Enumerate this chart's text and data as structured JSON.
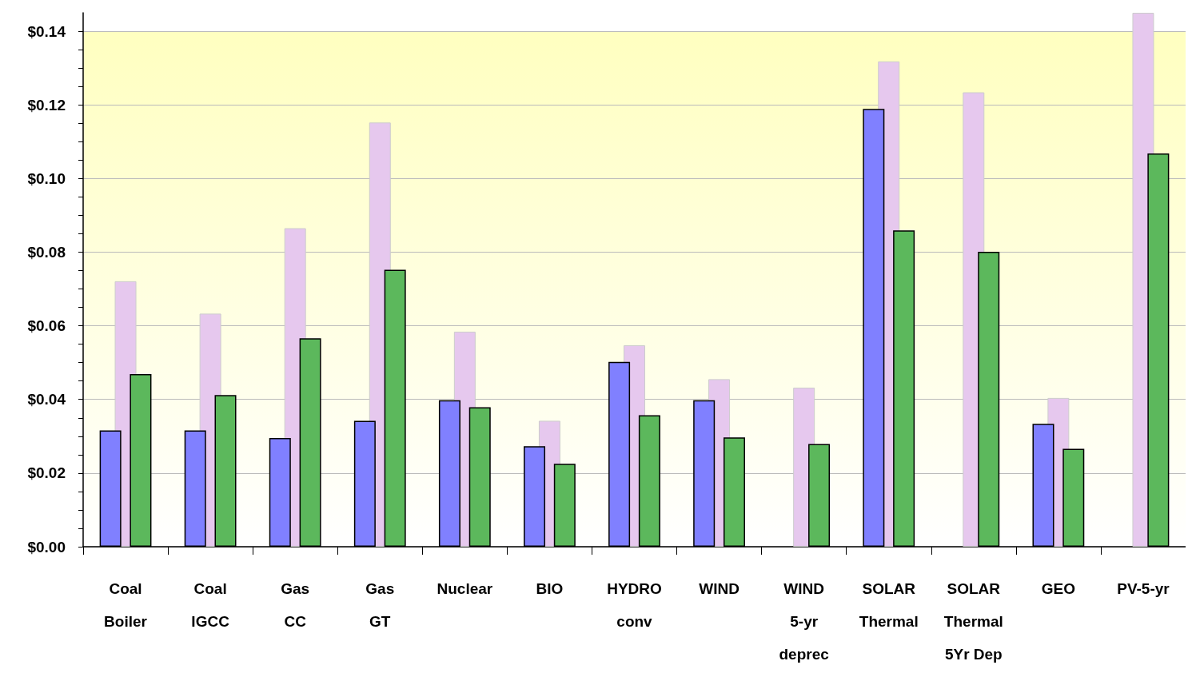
{
  "chart_data": {
    "type": "bar",
    "categories": [
      "Coal\nBoiler",
      "Coal\nIGCC",
      "Gas\nCC",
      "Gas\nGT",
      "Nuclear",
      "BIO",
      "HYDRO\nconv",
      "WIND",
      "WIND\n5-yr\ndeprec",
      "SOLAR\nThermal",
      "SOLAR\nThermal\n5Yr Dep",
      "GEO",
      "PV-5-yr"
    ],
    "series": [
      {
        "color": "#8080ff",
        "values": [
          0.0316,
          0.0316,
          0.0295,
          0.0342,
          0.0398,
          0.0273,
          0.0502,
          0.0398,
          null,
          0.1189,
          null,
          0.0334,
          null
        ]
      },
      {
        "color": "#e6c8ee",
        "values": [
          0.0721,
          0.0633,
          0.0865,
          0.1152,
          0.0584,
          0.0342,
          0.0547,
          0.0455,
          0.0432,
          0.1318,
          0.1234,
          0.0404,
          0.145
        ]
      },
      {
        "color": "#5cb85c",
        "values": [
          0.0469,
          0.0412,
          0.0566,
          0.0752,
          0.0379,
          0.0225,
          0.0357,
          0.0297,
          0.0279,
          0.0859,
          0.0801,
          0.0266,
          0.1068
        ]
      }
    ],
    "ylim": [
      0,
      0.145
    ],
    "yticks": [
      {
        "value": 0,
        "label": "$0.00"
      },
      {
        "value": 0.005,
        "label": null
      },
      {
        "value": 0.01,
        "label": null
      },
      {
        "value": 0.015,
        "label": null
      },
      {
        "value": 0.02,
        "label": "$0.02"
      },
      {
        "value": 0.025,
        "label": null
      },
      {
        "value": 0.03,
        "label": null
      },
      {
        "value": 0.035,
        "label": null
      },
      {
        "value": 0.04,
        "label": "$0.04"
      },
      {
        "value": 0.045,
        "label": null
      },
      {
        "value": 0.05,
        "label": null
      },
      {
        "value": 0.055,
        "label": null
      },
      {
        "value": 0.06,
        "label": "$0.06"
      },
      {
        "value": 0.065,
        "label": null
      },
      {
        "value": 0.07,
        "label": null
      },
      {
        "value": 0.075,
        "label": null
      },
      {
        "value": 0.08,
        "label": "$0.08"
      },
      {
        "value": 0.085,
        "label": null
      },
      {
        "value": 0.09,
        "label": null
      },
      {
        "value": 0.095,
        "label": null
      },
      {
        "value": 0.1,
        "label": "$0.10"
      },
      {
        "value": 0.105,
        "label": null
      },
      {
        "value": 0.11,
        "label": null
      },
      {
        "value": 0.115,
        "label": null
      },
      {
        "value": 0.12,
        "label": "$0.12"
      },
      {
        "value": 0.125,
        "label": null
      },
      {
        "value": 0.13,
        "label": null
      },
      {
        "value": 0.135,
        "label": null
      },
      {
        "value": 0.14,
        "label": "$0.14"
      }
    ],
    "grid": "y"
  }
}
